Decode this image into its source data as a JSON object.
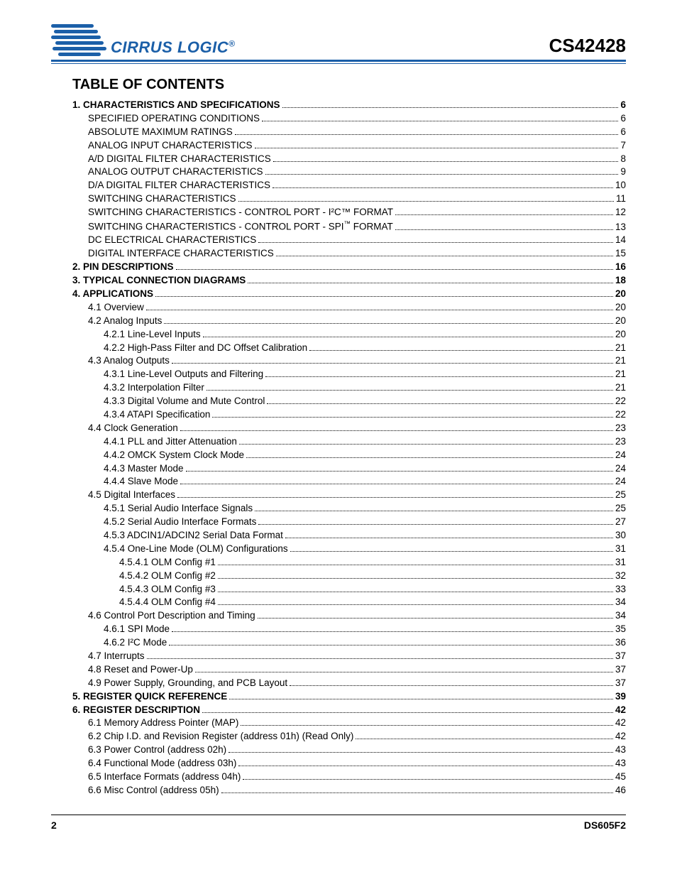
{
  "brand": {
    "name": "CIRRUS LOGIC",
    "logo_color": "#1b5fa8"
  },
  "part_number": "CS42428",
  "title": "TABLE OF CONTENTS",
  "footer": {
    "page": "2",
    "doc": "DS605F2"
  },
  "toc": [
    {
      "label": "1. CHARACTERISTICS AND SPECIFICATIONS",
      "page": "6",
      "indent": 0,
      "bold": true
    },
    {
      "label": "SPECIFIED OPERATING CONDITIONS",
      "page": "6",
      "indent": 1,
      "bold": false
    },
    {
      "label": "ABSOLUTE MAXIMUM RATINGS",
      "page": "6",
      "indent": 1,
      "bold": false
    },
    {
      "label": "ANALOG INPUT CHARACTERISTICS",
      "page": "7",
      "indent": 1,
      "bold": false
    },
    {
      "label": "A/D DIGITAL FILTER CHARACTERISTICS",
      "page": "8",
      "indent": 1,
      "bold": false
    },
    {
      "label": "ANALOG OUTPUT CHARACTERISTICS",
      "page": "9",
      "indent": 1,
      "bold": false
    },
    {
      "label": "D/A DIGITAL FILTER CHARACTERISTICS",
      "page": "10",
      "indent": 1,
      "bold": false
    },
    {
      "label": "SWITCHING CHARACTERISTICS",
      "page": "11",
      "indent": 1,
      "bold": false
    },
    {
      "label": "SWITCHING CHARACTERISTICS - CONTROL PORT - I²C™ FORMAT",
      "page": "12",
      "indent": 1,
      "bold": false
    },
    {
      "label": "SWITCHING CHARACTERISTICS - CONTROL PORT - SPI<sup>™</sup> FORMAT",
      "page": "13",
      "indent": 1,
      "bold": false,
      "html": true
    },
    {
      "label": "DC ELECTRICAL CHARACTERISTICS",
      "page": "14",
      "indent": 1,
      "bold": false
    },
    {
      "label": "DIGITAL INTERFACE CHARACTERISTICS",
      "page": "15",
      "indent": 1,
      "bold": false
    },
    {
      "label": "2. PIN DESCRIPTIONS",
      "page": "16",
      "indent": 0,
      "bold": true
    },
    {
      "label": "3. TYPICAL CONNECTION DIAGRAMS",
      "page": "18",
      "indent": 0,
      "bold": true
    },
    {
      "label": "4. APPLICATIONS",
      "page": "20",
      "indent": 0,
      "bold": true
    },
    {
      "label": "4.1 Overview",
      "page": "20",
      "indent": 1,
      "bold": false
    },
    {
      "label": "4.2 Analog Inputs",
      "page": "20",
      "indent": 1,
      "bold": false
    },
    {
      "label": "4.2.1 Line-Level Inputs",
      "page": "20",
      "indent": 2,
      "bold": false
    },
    {
      "label": "4.2.2 High-Pass Filter and DC Offset Calibration",
      "page": "21",
      "indent": 2,
      "bold": false
    },
    {
      "label": "4.3 Analog Outputs",
      "page": "21",
      "indent": 1,
      "bold": false
    },
    {
      "label": "4.3.1 Line-Level Outputs and Filtering",
      "page": "21",
      "indent": 2,
      "bold": false
    },
    {
      "label": "4.3.2 Interpolation Filter",
      "page": "21",
      "indent": 2,
      "bold": false
    },
    {
      "label": "4.3.3 Digital Volume and Mute Control",
      "page": "22",
      "indent": 2,
      "bold": false
    },
    {
      "label": "4.3.4 ATAPI Specification",
      "page": "22",
      "indent": 2,
      "bold": false
    },
    {
      "label": "4.4 Clock Generation",
      "page": "23",
      "indent": 1,
      "bold": false
    },
    {
      "label": "4.4.1 PLL and Jitter Attenuation",
      "page": "23",
      "indent": 2,
      "bold": false
    },
    {
      "label": "4.4.2 OMCK System Clock Mode",
      "page": "24",
      "indent": 2,
      "bold": false
    },
    {
      "label": "4.4.3 Master Mode",
      "page": "24",
      "indent": 2,
      "bold": false
    },
    {
      "label": "4.4.4 Slave Mode",
      "page": "24",
      "indent": 2,
      "bold": false
    },
    {
      "label": "4.5 Digital Interfaces",
      "page": "25",
      "indent": 1,
      "bold": false
    },
    {
      "label": "4.5.1 Serial Audio Interface Signals",
      "page": "25",
      "indent": 2,
      "bold": false
    },
    {
      "label": "4.5.2 Serial Audio Interface Formats",
      "page": "27",
      "indent": 2,
      "bold": false
    },
    {
      "label": "4.5.3 ADCIN1/ADCIN2 Serial Data Format",
      "page": "30",
      "indent": 2,
      "bold": false
    },
    {
      "label": "4.5.4 One-Line Mode (OLM) Configurations",
      "page": "31",
      "indent": 2,
      "bold": false
    },
    {
      "label": "4.5.4.1 OLM Config #1",
      "page": "31",
      "indent": 3,
      "bold": false
    },
    {
      "label": "4.5.4.2 OLM Config #2",
      "page": "32",
      "indent": 3,
      "bold": false
    },
    {
      "label": "4.5.4.3 OLM Config #3",
      "page": "33",
      "indent": 3,
      "bold": false
    },
    {
      "label": "4.5.4.4 OLM Config #4",
      "page": "34",
      "indent": 3,
      "bold": false
    },
    {
      "label": "4.6 Control Port Description and Timing",
      "page": "34",
      "indent": 1,
      "bold": false
    },
    {
      "label": "4.6.1 SPI Mode",
      "page": "35",
      "indent": 2,
      "bold": false
    },
    {
      "label": "4.6.2 I²C Mode",
      "page": "36",
      "indent": 2,
      "bold": false
    },
    {
      "label": "4.7 Interrupts",
      "page": "37",
      "indent": 1,
      "bold": false
    },
    {
      "label": "4.8 Reset and Power-Up",
      "page": "37",
      "indent": 1,
      "bold": false
    },
    {
      "label": "4.9 Power Supply, Grounding, and PCB Layout",
      "page": "37",
      "indent": 1,
      "bold": false
    },
    {
      "label": "5. REGISTER QUICK REFERENCE",
      "page": "39",
      "indent": 0,
      "bold": true
    },
    {
      "label": "6. REGISTER DESCRIPTION",
      "page": "42",
      "indent": 0,
      "bold": true
    },
    {
      "label": "6.1 Memory Address Pointer (MAP)",
      "page": "42",
      "indent": 1,
      "bold": false
    },
    {
      "label": "6.2 Chip I.D. and Revision Register (address 01h) (Read Only)",
      "page": "42",
      "indent": 1,
      "bold": false
    },
    {
      "label": "6.3 Power Control (address 02h)",
      "page": "43",
      "indent": 1,
      "bold": false
    },
    {
      "label": "6.4 Functional Mode (address 03h)",
      "page": "43",
      "indent": 1,
      "bold": false
    },
    {
      "label": "6.5 Interface Formats (address 04h)",
      "page": "45",
      "indent": 1,
      "bold": false
    },
    {
      "label": "6.6 Misc Control (address 05h)",
      "page": "46",
      "indent": 1,
      "bold": false
    }
  ]
}
